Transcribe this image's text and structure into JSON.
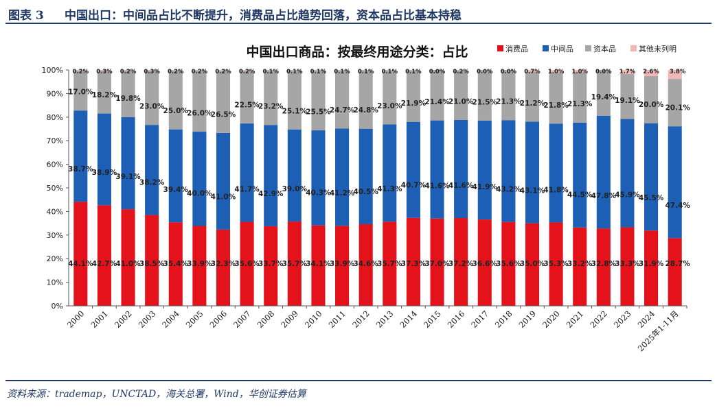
{
  "header": {
    "label": "图表 3",
    "title": "中国出口：中间品占比不断提升，消费品占比趋势回落，资本品占比基本持稳"
  },
  "source": "资料来源：trademap，UNCTAD，海关总署，Wind，华创证券估算",
  "chart_data": {
    "type": "stacked-bar",
    "title": "中国出口商品：按最终用途分类：占比",
    "xlabel": "",
    "ylabel": "",
    "ylim": [
      0,
      100
    ],
    "yticks": [
      "0%",
      "10%",
      "20%",
      "30%",
      "40%",
      "50%",
      "60%",
      "70%",
      "80%",
      "90%",
      "100%"
    ],
    "categories": [
      "2000",
      "2001",
      "2002",
      "2003",
      "2004",
      "2005",
      "2006",
      "2007",
      "2008",
      "2009",
      "2010",
      "2011",
      "2012",
      "2013",
      "2014",
      "2015",
      "2016",
      "2017",
      "2018",
      "2019",
      "2020",
      "2021",
      "2022",
      "2023",
      "2024",
      "2025年1-11月"
    ],
    "legend_position": "top-right",
    "series": [
      {
        "name": "消费品",
        "color": "#e3121b",
        "values": [
          44.1,
          42.7,
          41.0,
          38.5,
          35.4,
          33.9,
          32.3,
          35.6,
          33.7,
          35.7,
          34.1,
          33.9,
          34.6,
          35.7,
          37.3,
          37.0,
          37.2,
          36.6,
          35.6,
          35.0,
          35.3,
          33.2,
          32.8,
          33.3,
          31.9,
          28.7
        ]
      },
      {
        "name": "中间品",
        "color": "#1d5fb5",
        "values": [
          38.7,
          38.9,
          39.1,
          38.2,
          39.4,
          40.0,
          41.0,
          41.7,
          42.9,
          39.0,
          40.3,
          41.2,
          40.5,
          41.3,
          40.7,
          41.6,
          41.6,
          41.9,
          43.2,
          43.1,
          41.8,
          44.5,
          47.8,
          45.9,
          45.5,
          47.4
        ]
      },
      {
        "name": "资本品",
        "color": "#a6a6a6",
        "values": [
          17.0,
          18.2,
          19.8,
          23.0,
          25.0,
          26.0,
          26.5,
          22.5,
          23.2,
          25.1,
          25.5,
          24.7,
          24.8,
          23.0,
          21.9,
          21.4,
          21.0,
          21.5,
          21.3,
          21.2,
          21.8,
          21.3,
          19.4,
          19.1,
          20.0,
          20.1
        ]
      },
      {
        "name": "其他未列明",
        "color": "#f2b8b8",
        "values": [
          0.2,
          0.3,
          0.2,
          0.3,
          0.2,
          0.2,
          0.2,
          0.2,
          0.1,
          0.1,
          0.1,
          0.1,
          0.1,
          0.1,
          0.1,
          0.0,
          0.2,
          0.0,
          0.0,
          0.7,
          1.0,
          1.0,
          0.0,
          1.7,
          2.6,
          3.8
        ]
      }
    ]
  }
}
